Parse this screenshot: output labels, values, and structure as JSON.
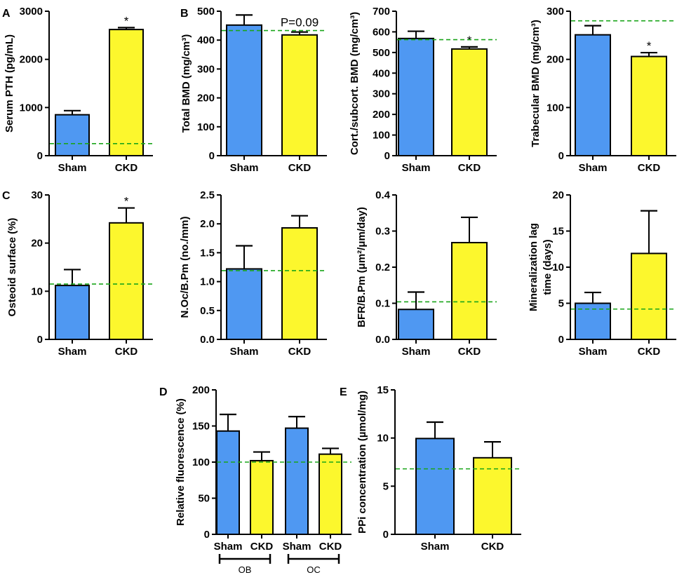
{
  "colors": {
    "sham": "#4f98f2",
    "ckd": "#fcf72d",
    "reference": "#1aa51a",
    "axis": "#000000"
  },
  "chart_data": [
    {
      "panel": "A",
      "type": "bar",
      "categories": [
        "Sham",
        "CKD"
      ],
      "values": [
        850,
        2620
      ],
      "errors": [
        85,
        40
      ],
      "ylabel": "Serum PTH (pg/mL)",
      "ylim": [
        0,
        3000
      ],
      "yticks": [
        0,
        1000,
        2000,
        3000
      ],
      "reference": 250,
      "annotations": [
        {
          "text": "*",
          "category": 1
        }
      ]
    },
    {
      "panel": "B",
      "type": "bar",
      "categories": [
        "Sham",
        "CKD"
      ],
      "values": [
        452,
        418
      ],
      "errors": [
        35,
        10
      ],
      "ylabel": "Total BMD (mg/cm³)",
      "ylim": [
        0,
        500
      ],
      "yticks": [
        0,
        100,
        200,
        300,
        400,
        500
      ],
      "reference": 433,
      "annotations": [
        {
          "text": "P=0.09",
          "category": 1
        }
      ]
    },
    {
      "panel": "",
      "type": "bar",
      "categories": [
        "Sham",
        "CKD"
      ],
      "values": [
        568,
        517
      ],
      "errors": [
        35,
        10
      ],
      "ylabel": "Cort./subcort. BMD (mg/cm³)",
      "ylim": [
        0,
        700
      ],
      "yticks": [
        0,
        100,
        200,
        300,
        400,
        500,
        600,
        700
      ],
      "reference": 562,
      "annotations": [
        {
          "text": "*",
          "category": 1
        }
      ]
    },
    {
      "panel": "",
      "type": "bar",
      "categories": [
        "Sham",
        "CKD"
      ],
      "values": [
        251,
        206
      ],
      "errors": [
        19,
        8
      ],
      "ylabel": "Trabecular BMD (mg/cm³)",
      "ylim": [
        0,
        300
      ],
      "yticks": [
        0,
        100,
        200,
        300
      ],
      "reference": 280,
      "annotations": [
        {
          "text": "*",
          "category": 1
        }
      ]
    },
    {
      "panel": "C",
      "type": "bar",
      "categories": [
        "Sham",
        "CKD"
      ],
      "values": [
        11.2,
        24.2
      ],
      "errors": [
        3.3,
        3.1
      ],
      "ylabel": "Osteoid surface (%)",
      "ylim": [
        0,
        30
      ],
      "yticks": [
        0,
        10,
        20,
        30
      ],
      "reference": 11.5,
      "annotations": [
        {
          "text": "*",
          "category": 1
        }
      ]
    },
    {
      "panel": "",
      "type": "bar",
      "categories": [
        "Sham",
        "CKD"
      ],
      "values": [
        1.22,
        1.93
      ],
      "errors": [
        0.4,
        0.21
      ],
      "ylabel": "N.Oc/B.Pm (no./mm)",
      "ylim": [
        0,
        2.5
      ],
      "yticks": [
        0.0,
        0.5,
        1.0,
        1.5,
        2.0,
        2.5
      ],
      "ytick_decimals": 1,
      "reference": 1.19,
      "annotations": []
    },
    {
      "panel": "",
      "type": "bar",
      "categories": [
        "Sham",
        "CKD"
      ],
      "values": [
        0.083,
        0.268
      ],
      "errors": [
        0.048,
        0.07
      ],
      "ylabel": "BFR/B.Pm (μm²/μm/day)",
      "ylim": [
        0,
        0.4
      ],
      "yticks": [
        0.0,
        0.1,
        0.2,
        0.3,
        0.4
      ],
      "ytick_decimals": 1,
      "reference": 0.104,
      "annotations": []
    },
    {
      "panel": "",
      "type": "bar",
      "categories": [
        "Sham",
        "CKD"
      ],
      "values": [
        5.0,
        11.9
      ],
      "errors": [
        1.5,
        5.9
      ],
      "ylabel": [
        "Mineralization lag",
        "time (days)"
      ],
      "ylim": [
        0,
        20
      ],
      "yticks": [
        0,
        5,
        10,
        15,
        20
      ],
      "reference": 4.2,
      "annotations": []
    },
    {
      "panel": "D",
      "type": "bar",
      "categories": [
        "Sham",
        "CKD",
        "Sham",
        "CKD"
      ],
      "values": [
        143,
        102,
        147,
        111
      ],
      "errors": [
        23,
        12,
        16,
        8
      ],
      "ylabel": "Relative fluorescence (%)",
      "ylim": [
        0,
        200
      ],
      "yticks": [
        0,
        50,
        100,
        150,
        200
      ],
      "reference": 100,
      "groups": [
        "OB",
        "OC"
      ],
      "annotations": []
    },
    {
      "panel": "E",
      "type": "bar",
      "categories": [
        "Sham",
        "CKD"
      ],
      "values": [
        9.95,
        7.95
      ],
      "errors": [
        1.7,
        1.65
      ],
      "ylabel": "PPi concentration (µmol/mg)",
      "ylim": [
        0,
        15
      ],
      "yticks": [
        0,
        5,
        10,
        15
      ],
      "reference": 6.8,
      "annotations": []
    }
  ]
}
